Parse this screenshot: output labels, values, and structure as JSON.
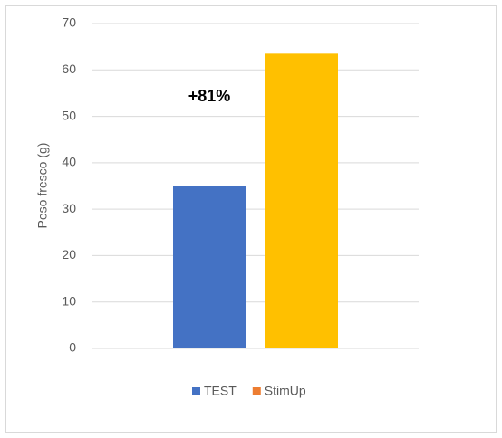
{
  "chart_data": {
    "type": "bar",
    "y_label": "Peso fresco (g)",
    "annotation": "+81%",
    "categories": [
      null
    ],
    "series": [
      {
        "name": "TEST",
        "color": "#4472c4",
        "legend_color": "#4472c4",
        "values": [
          35
        ]
      },
      {
        "name": "StimUp",
        "color": "#ffc000",
        "legend_color": "#ed7d31",
        "values": [
          63.5
        ]
      }
    ],
    "ylim": [
      0,
      70
    ],
    "yticks": [
      0,
      10,
      20,
      30,
      40,
      50,
      60,
      70
    ],
    "grid": true
  }
}
